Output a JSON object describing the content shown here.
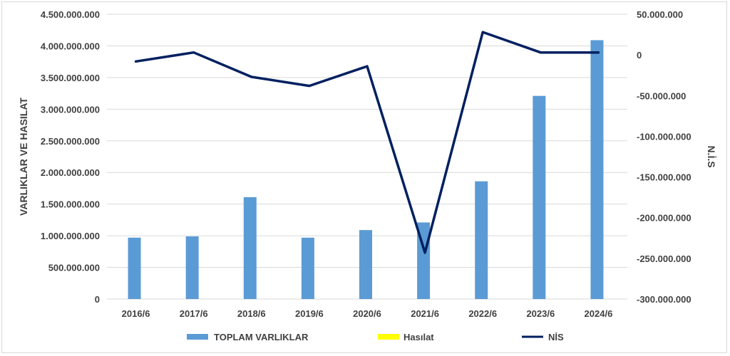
{
  "chart_data": {
    "type": "bar",
    "categories": [
      "2016/6",
      "2017/6",
      "2018/6",
      "2019/6",
      "2020/6",
      "2021/6",
      "2022/6",
      "2023/6",
      "2024/6"
    ],
    "series": [
      {
        "name": "TOPLAM VARLIKLAR",
        "type": "bar",
        "axis": "left",
        "color": "#5b9bd5",
        "values": [
          970000000,
          990000000,
          1610000000,
          970000000,
          1090000000,
          1210000000,
          1860000000,
          3210000000,
          4090000000
        ]
      },
      {
        "name": "Hasılat",
        "type": "bar",
        "axis": "left",
        "color": "#ffff00",
        "values": [
          0,
          0,
          0,
          0,
          0,
          0,
          0,
          0,
          0
        ]
      },
      {
        "name": "NİS",
        "type": "line",
        "axis": "right",
        "color": "#002060",
        "values": [
          -8000000,
          3000000,
          -27000000,
          -38000000,
          -14000000,
          -243000000,
          28000000,
          3000000,
          3000000
        ]
      }
    ],
    "ylabel": "VARLIKLAR VE HASILAT",
    "y2label": "N.İ.S",
    "ylim": [
      0,
      4500000000
    ],
    "y2lim": [
      -300000000,
      50000000
    ],
    "yticks": [
      "0",
      "500.000.000",
      "1.000.000.000",
      "1.500.000.000",
      "2.000.000.000",
      "2.500.000.000",
      "3.000.000.000",
      "3.500.000.000",
      "4.000.000.000",
      "4.500.000.000"
    ],
    "y2ticks": [
      "-300.000.000",
      "-250.000.000",
      "-200.000.000",
      "-150.000.000",
      "-100.000.000",
      "-50.000.000",
      "0",
      "50.000.000"
    ],
    "grid": true,
    "legend_position": "bottom"
  }
}
